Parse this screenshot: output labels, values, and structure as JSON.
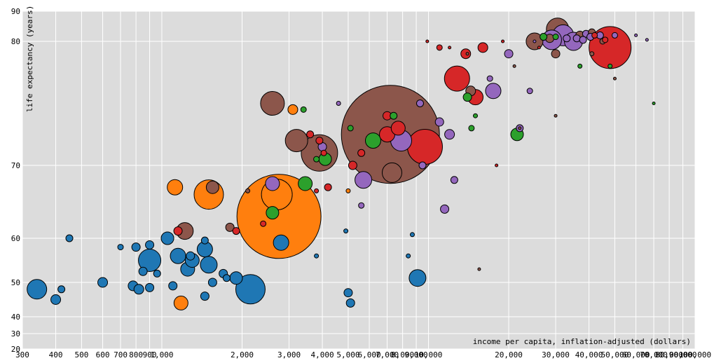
{
  "chart_data": {
    "type": "scatter",
    "xlabel": "income per capita, inflation-adjusted (dollars)",
    "ylabel": "life expectancy (years)",
    "x_scale": "log",
    "xlim": [
      300,
      100000
    ],
    "ylim": [
      20,
      90
    ],
    "grid": true,
    "x_ticks": [
      300,
      400,
      500,
      600,
      700,
      800,
      900,
      1000,
      2000,
      3000,
      4000,
      5000,
      6000,
      7000,
      8000,
      9000,
      10000,
      20000,
      30000,
      40000,
      50000,
      60000,
      70000,
      80000,
      90000,
      100000
    ],
    "x_tick_labels": [
      "300",
      "400",
      "500",
      "600",
      "700",
      "800",
      "900",
      "1,000",
      "2,000",
      "3,000",
      "4,000",
      "5,000",
      "6,000",
      "7,000",
      "8,000",
      "9,000",
      "10,000",
      "20,000",
      "30,000",
      "40,000",
      "50,000",
      "60,000",
      "70,000",
      "80,000",
      "90,000",
      "100,000"
    ],
    "y_ticks": [
      20,
      30,
      40,
      50,
      60,
      70,
      80,
      90
    ],
    "y_tick_labels": [
      "20",
      "30",
      "40",
      "50",
      "60",
      "70",
      "80",
      "90"
    ],
    "colors": {
      "blue": "#1f77b4",
      "orange": "#ff7f0e",
      "green": "#2ca02c",
      "red": "#d62728",
      "purple": "#9467bd",
      "brown": "#8c564b"
    },
    "points": [
      {
        "x": 7200,
        "y": 72.5,
        "size": 70,
        "color": "brown"
      },
      {
        "x": 2750,
        "y": 63,
        "size": 60,
        "color": "orange"
      },
      {
        "x": 48000,
        "y": 79.5,
        "size": 30,
        "color": "red"
      },
      {
        "x": 9700,
        "y": 71.5,
        "size": 25,
        "color": "red"
      },
      {
        "x": 2700,
        "y": 66,
        "size": 22,
        "color": "orange"
      },
      {
        "x": 2150,
        "y": 48,
        "size": 21,
        "color": "blue"
      },
      {
        "x": 3900,
        "y": 71,
        "size": 26,
        "color": "brown"
      },
      {
        "x": 1500,
        "y": 66,
        "size": 21,
        "color": "orange"
      },
      {
        "x": 12800,
        "y": 77,
        "size": 18,
        "color": "red"
      },
      {
        "x": 900,
        "y": 55,
        "size": 16,
        "color": "blue"
      },
      {
        "x": 30500,
        "y": 84,
        "size": 16,
        "color": "brown"
      },
      {
        "x": 32000,
        "y": 82,
        "size": 15,
        "color": "purple"
      },
      {
        "x": 29000,
        "y": 80.5,
        "size": 14,
        "color": "purple"
      },
      {
        "x": 35000,
        "y": 80,
        "size": 13,
        "color": "purple"
      },
      {
        "x": 2600,
        "y": 75,
        "size": 17,
        "color": "brown"
      },
      {
        "x": 3200,
        "y": 72,
        "size": 16,
        "color": "brown"
      },
      {
        "x": 7900,
        "y": 72,
        "size": 15,
        "color": "purple"
      },
      {
        "x": 7300,
        "y": 69,
        "size": 14,
        "color": "brown"
      },
      {
        "x": 9100,
        "y": 51,
        "size": 12,
        "color": "blue"
      },
      {
        "x": 340,
        "y": 48,
        "size": 14,
        "color": "blue"
      },
      {
        "x": 1150,
        "y": 56,
        "size": 11,
        "color": "blue"
      },
      {
        "x": 1450,
        "y": 57.5,
        "size": 11,
        "color": "blue"
      },
      {
        "x": 1500,
        "y": 54,
        "size": 12,
        "color": "blue"
      },
      {
        "x": 1250,
        "y": 53,
        "size": 10,
        "color": "blue"
      },
      {
        "x": 1300,
        "y": 55,
        "size": 10,
        "color": "blue"
      },
      {
        "x": 1900,
        "y": 51,
        "size": 9,
        "color": "blue"
      },
      {
        "x": 1050,
        "y": 60,
        "size": 9,
        "color": "blue"
      },
      {
        "x": 1220,
        "y": 61,
        "size": 12,
        "color": "brown"
      },
      {
        "x": 2800,
        "y": 59,
        "size": 11,
        "color": "blue"
      },
      {
        "x": 2600,
        "y": 63.5,
        "size": 9,
        "color": "green"
      },
      {
        "x": 3450,
        "y": 67.5,
        "size": 10,
        "color": "green"
      },
      {
        "x": 1120,
        "y": 67,
        "size": 11,
        "color": "orange"
      },
      {
        "x": 1550,
        "y": 67,
        "size": 9,
        "color": "brown"
      },
      {
        "x": 2600,
        "y": 67.5,
        "size": 10,
        "color": "purple"
      },
      {
        "x": 5700,
        "y": 68,
        "size": 12,
        "color": "purple"
      },
      {
        "x": 6200,
        "y": 72,
        "size": 11,
        "color": "green"
      },
      {
        "x": 7000,
        "y": 72.5,
        "size": 11,
        "color": "red"
      },
      {
        "x": 7700,
        "y": 73,
        "size": 10,
        "color": "red"
      },
      {
        "x": 15000,
        "y": 75.5,
        "size": 11,
        "color": "red"
      },
      {
        "x": 17500,
        "y": 76,
        "size": 11,
        "color": "purple"
      },
      {
        "x": 21500,
        "y": 72.5,
        "size": 9,
        "color": "green"
      },
      {
        "x": 25000,
        "y": 80,
        "size": 12,
        "color": "brown"
      },
      {
        "x": 1180,
        "y": 44,
        "size": 10,
        "color": "orange"
      },
      {
        "x": 5000,
        "y": 47,
        "size": 6,
        "color": "blue"
      },
      {
        "x": 4100,
        "y": 70.5,
        "size": 9,
        "color": "green"
      },
      {
        "x": 1150,
        "y": 61,
        "size": 6,
        "color": "red"
      },
      {
        "x": 11500,
        "y": 64,
        "size": 6,
        "color": "purple"
      },
      {
        "x": 7000,
        "y": 74,
        "size": 6,
        "color": "red"
      },
      {
        "x": 3100,
        "y": 74.5,
        "size": 7,
        "color": "orange"
      },
      {
        "x": 12000,
        "y": 72.5,
        "size": 7,
        "color": "purple"
      },
      {
        "x": 11000,
        "y": 73.5,
        "size": 6,
        "color": "purple"
      },
      {
        "x": 20000,
        "y": 79,
        "size": 6,
        "color": "purple"
      },
      {
        "x": 13800,
        "y": 79,
        "size": 7,
        "color": "red"
      },
      {
        "x": 600,
        "y": 50,
        "size": 7,
        "color": "blue"
      },
      {
        "x": 800,
        "y": 58,
        "size": 6,
        "color": "blue"
      },
      {
        "x": 900,
        "y": 58.5,
        "size": 6,
        "color": "blue"
      },
      {
        "x": 780,
        "y": 49,
        "size": 7,
        "color": "blue"
      },
      {
        "x": 820,
        "y": 48,
        "size": 7,
        "color": "blue"
      },
      {
        "x": 1100,
        "y": 49,
        "size": 6,
        "color": "blue"
      },
      {
        "x": 1450,
        "y": 46,
        "size": 6,
        "color": "blue"
      },
      {
        "x": 1550,
        "y": 50,
        "size": 6,
        "color": "blue"
      },
      {
        "x": 400,
        "y": 45,
        "size": 7,
        "color": "blue"
      },
      {
        "x": 420,
        "y": 48,
        "size": 5,
        "color": "blue"
      },
      {
        "x": 450,
        "y": 60,
        "size": 5,
        "color": "blue"
      },
      {
        "x": 900,
        "y": 48.5,
        "size": 6,
        "color": "blue"
      },
      {
        "x": 960,
        "y": 52,
        "size": 5,
        "color": "blue"
      },
      {
        "x": 850,
        "y": 52.5,
        "size": 6,
        "color": "blue"
      },
      {
        "x": 1450,
        "y": 59.5,
        "size": 5,
        "color": "blue"
      },
      {
        "x": 700,
        "y": 58,
        "size": 4,
        "color": "blue"
      },
      {
        "x": 1280,
        "y": 56,
        "size": 6,
        "color": "blue"
      },
      {
        "x": 1700,
        "y": 52,
        "size": 6,
        "color": "blue"
      },
      {
        "x": 1750,
        "y": 51,
        "size": 5,
        "color": "blue"
      },
      {
        "x": 5100,
        "y": 44,
        "size": 6,
        "color": "blue"
      },
      {
        "x": 3900,
        "y": 72,
        "size": 5,
        "color": "red"
      },
      {
        "x": 4000,
        "y": 71.5,
        "size": 6,
        "color": "purple"
      },
      {
        "x": 4050,
        "y": 71,
        "size": 4,
        "color": "red"
      },
      {
        "x": 3600,
        "y": 72.5,
        "size": 5,
        "color": "red"
      },
      {
        "x": 3800,
        "y": 70.5,
        "size": 4,
        "color": "green"
      },
      {
        "x": 4200,
        "y": 67,
        "size": 5,
        "color": "red"
      },
      {
        "x": 5200,
        "y": 70,
        "size": 6,
        "color": "red"
      },
      {
        "x": 5600,
        "y": 71,
        "size": 5,
        "color": "red"
      },
      {
        "x": 5100,
        "y": 73,
        "size": 4,
        "color": "green"
      },
      {
        "x": 5600,
        "y": 64.5,
        "size": 4,
        "color": "purple"
      },
      {
        "x": 5000,
        "y": 66.5,
        "size": 3,
        "color": "orange"
      },
      {
        "x": 4900,
        "y": 61,
        "size": 3,
        "color": "blue"
      },
      {
        "x": 3800,
        "y": 56,
        "size": 3,
        "color": "blue"
      },
      {
        "x": 2400,
        "y": 62,
        "size": 4,
        "color": "red"
      },
      {
        "x": 1800,
        "y": 61.5,
        "size": 6,
        "color": "brown"
      },
      {
        "x": 1900,
        "y": 61,
        "size": 5,
        "color": "red"
      },
      {
        "x": 2100,
        "y": 66.5,
        "size": 3,
        "color": "brown"
      },
      {
        "x": 3800,
        "y": 66.5,
        "size": 3,
        "color": "red"
      },
      {
        "x": 4600,
        "y": 75,
        "size": 3,
        "color": "purple"
      },
      {
        "x": 3400,
        "y": 74.5,
        "size": 4,
        "color": "green"
      },
      {
        "x": 7400,
        "y": 74,
        "size": 5,
        "color": "green"
      },
      {
        "x": 9300,
        "y": 75,
        "size": 5,
        "color": "purple"
      },
      {
        "x": 9500,
        "y": 70,
        "size": 5,
        "color": "purple"
      },
      {
        "x": 12500,
        "y": 68,
        "size": 5,
        "color": "purple"
      },
      {
        "x": 14000,
        "y": 75.5,
        "size": 6,
        "color": "green"
      },
      {
        "x": 15000,
        "y": 74,
        "size": 3,
        "color": "green"
      },
      {
        "x": 14500,
        "y": 73,
        "size": 4,
        "color": "green"
      },
      {
        "x": 14400,
        "y": 76,
        "size": 7,
        "color": "brown"
      },
      {
        "x": 16000,
        "y": 79.5,
        "size": 7,
        "color": "red"
      },
      {
        "x": 17000,
        "y": 77,
        "size": 4,
        "color": "purple"
      },
      {
        "x": 22000,
        "y": 73,
        "size": 5,
        "color": "purple"
      },
      {
        "x": 24000,
        "y": 76,
        "size": 4,
        "color": "purple"
      },
      {
        "x": 30000,
        "y": 79,
        "size": 6,
        "color": "brown"
      },
      {
        "x": 28500,
        "y": 81,
        "size": 6,
        "color": "brown"
      },
      {
        "x": 27000,
        "y": 81.5,
        "size": 5,
        "color": "green"
      },
      {
        "x": 37000,
        "y": 82,
        "size": 6,
        "color": "brown"
      },
      {
        "x": 39000,
        "y": 82.5,
        "size": 5,
        "color": "purple"
      },
      {
        "x": 41000,
        "y": 83,
        "size": 5,
        "color": "brown"
      },
      {
        "x": 42000,
        "y": 82,
        "size": 4,
        "color": "red"
      },
      {
        "x": 40500,
        "y": 81.5,
        "size": 5,
        "color": "purple"
      },
      {
        "x": 36000,
        "y": 81,
        "size": 5,
        "color": "purple"
      },
      {
        "x": 33000,
        "y": 81,
        "size": 5,
        "color": "purple"
      },
      {
        "x": 38000,
        "y": 80.5,
        "size": 5,
        "color": "purple"
      },
      {
        "x": 30000,
        "y": 81.5,
        "size": 4,
        "color": "green"
      },
      {
        "x": 44000,
        "y": 82,
        "size": 5,
        "color": "purple"
      },
      {
        "x": 45000,
        "y": 80,
        "size": 4,
        "color": "brown"
      },
      {
        "x": 50000,
        "y": 82,
        "size": 4,
        "color": "purple"
      },
      {
        "x": 46000,
        "y": 80.5,
        "size": 4,
        "color": "red"
      },
      {
        "x": 48000,
        "y": 78,
        "size": 3,
        "color": "green"
      },
      {
        "x": 60000,
        "y": 82,
        "size": 2,
        "color": "purple"
      },
      {
        "x": 66000,
        "y": 80.5,
        "size": 2,
        "color": "purple"
      },
      {
        "x": 70000,
        "y": 75,
        "size": 2,
        "color": "green"
      },
      {
        "x": 37000,
        "y": 78,
        "size": 3,
        "color": "green"
      },
      {
        "x": 41000,
        "y": 79,
        "size": 3,
        "color": "brown"
      },
      {
        "x": 50000,
        "y": 77,
        "size": 2,
        "color": "brown"
      },
      {
        "x": 26000,
        "y": 79.5,
        "size": 2,
        "color": "red"
      },
      {
        "x": 11000,
        "y": 79.5,
        "size": 4,
        "color": "red"
      },
      {
        "x": 12000,
        "y": 79.5,
        "size": 2,
        "color": "red"
      },
      {
        "x": 18000,
        "y": 70,
        "size": 2,
        "color": "red"
      },
      {
        "x": 22000,
        "y": 73,
        "size": 2,
        "color": "brown"
      },
      {
        "x": 30000,
        "y": 74,
        "size": 2,
        "color": "brown"
      },
      {
        "x": 25000,
        "y": 80,
        "size": 2,
        "color": "purple"
      },
      {
        "x": 19000,
        "y": 80,
        "size": 2,
        "color": "red"
      },
      {
        "x": 9900,
        "y": 80,
        "size": 2,
        "color": "red"
      },
      {
        "x": 21000,
        "y": 78,
        "size": 2,
        "color": "brown"
      },
      {
        "x": 15500,
        "y": 53,
        "size": 2,
        "color": "brown"
      },
      {
        "x": 14000,
        "y": 79,
        "size": 2,
        "color": "brown"
      },
      {
        "x": 8400,
        "y": 56,
        "size": 3,
        "color": "blue"
      },
      {
        "x": 8700,
        "y": 60.5,
        "size": 3,
        "color": "blue"
      }
    ]
  }
}
